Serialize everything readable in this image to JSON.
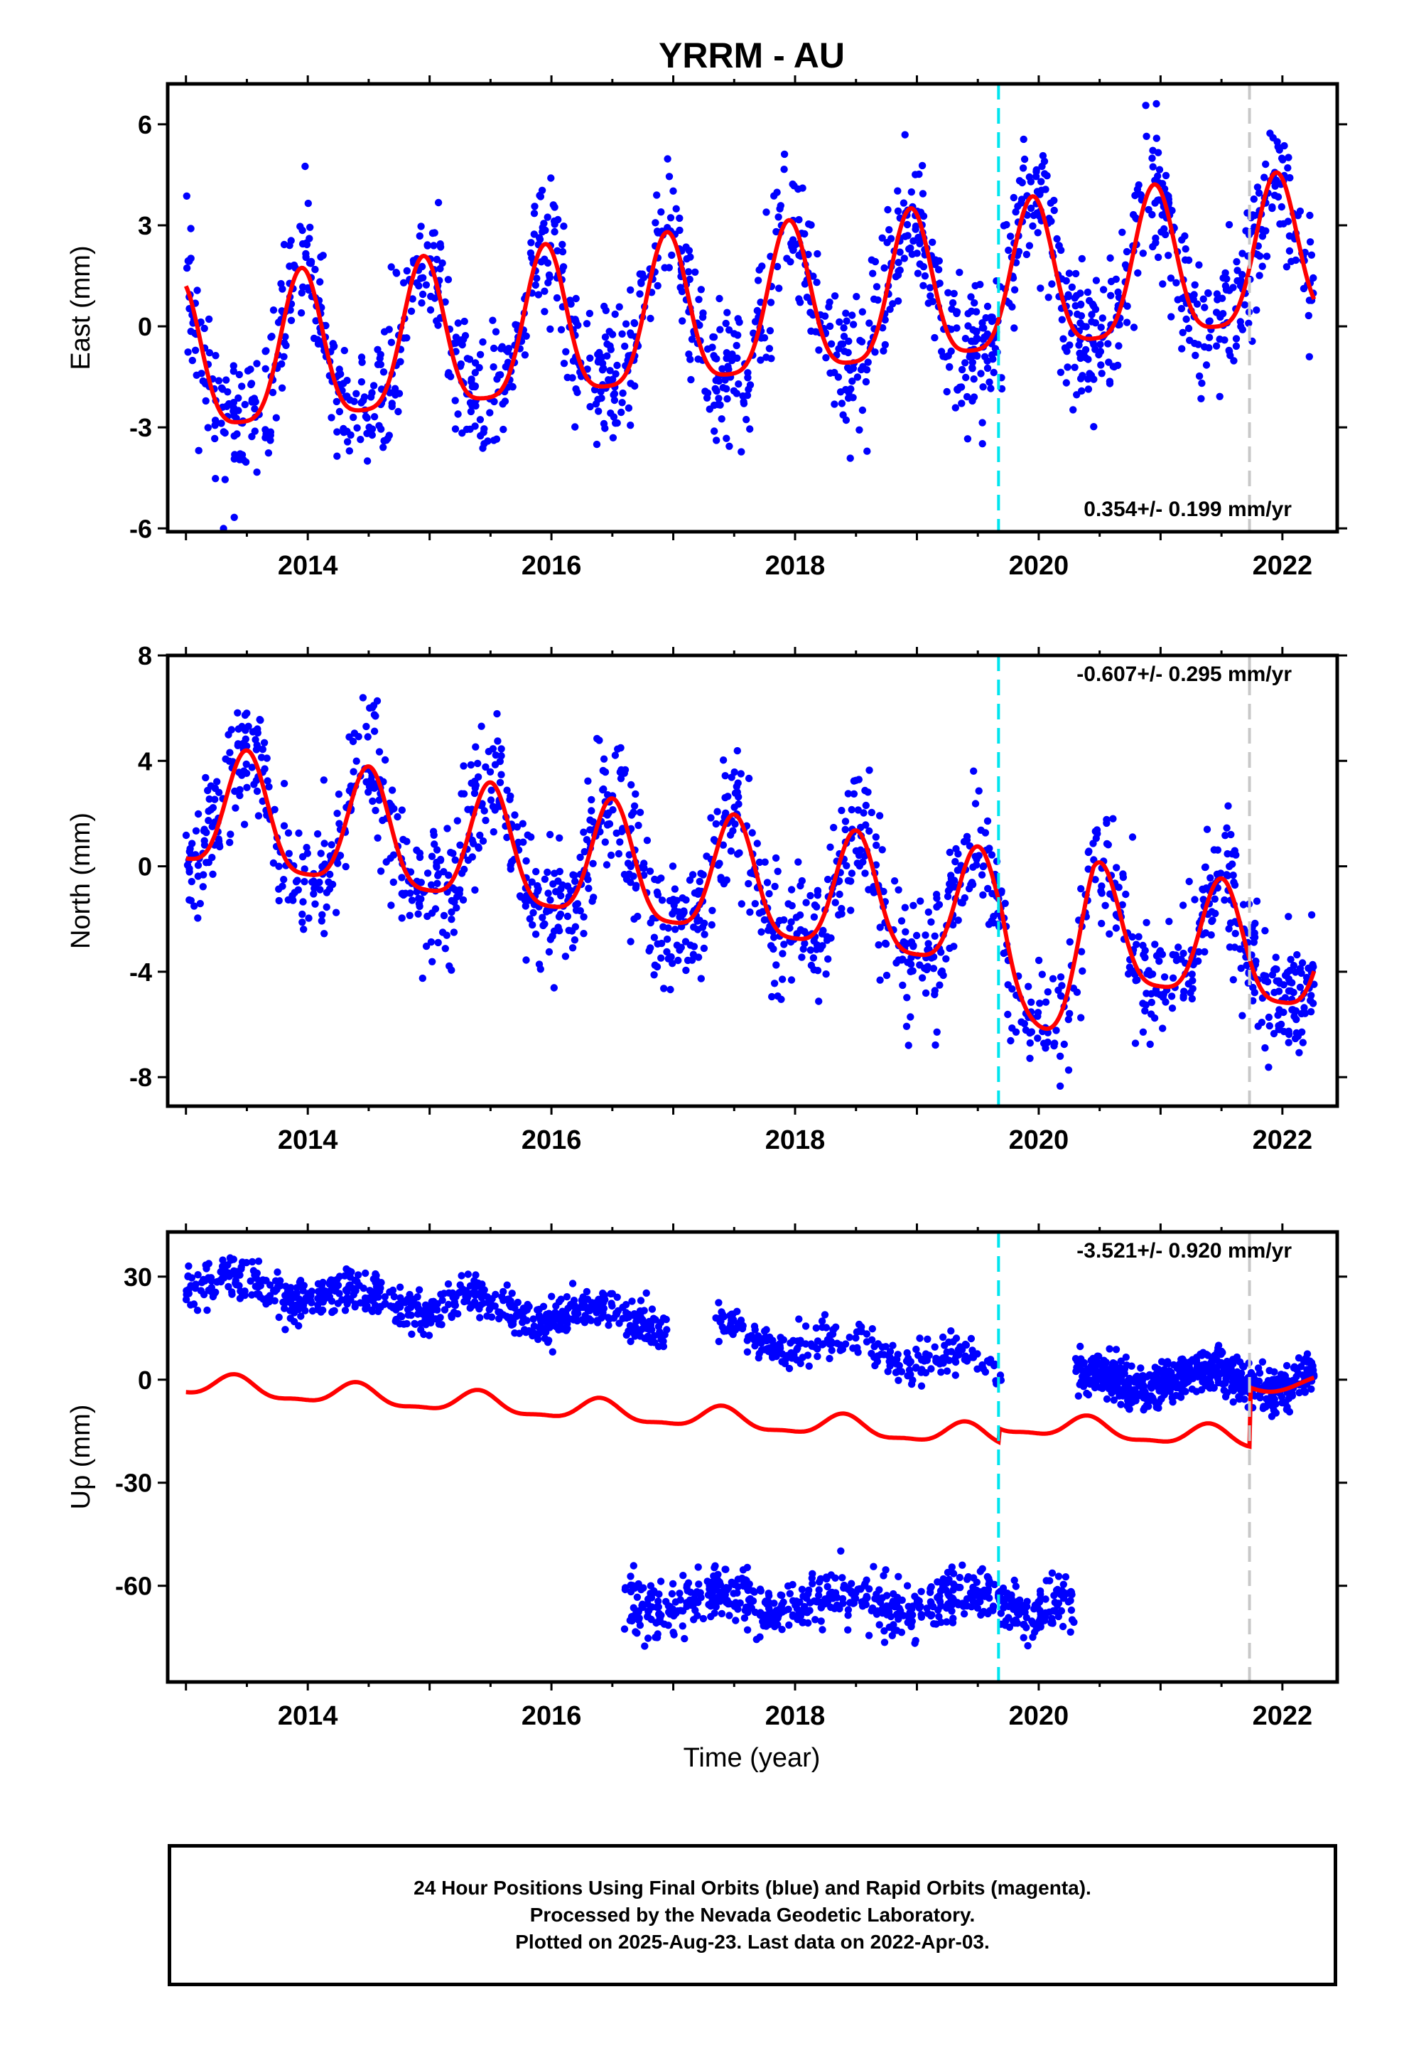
{
  "title": "YRRM - AU",
  "xlabel": "Time (year)",
  "footer": {
    "line1": "24 Hour Positions Using Final Orbits (blue) and Rapid Orbits (magenta).",
    "line2": "Processed by the Nevada Geodetic Laboratory.",
    "line3": "Plotted on 2025-Aug-23. Last data on 2022-Apr-03."
  },
  "colors": {
    "points": "#0000ff",
    "model": "#ff0000",
    "cyan_line": "#00e5ee",
    "gray_line": "#c8c8c8"
  },
  "chart_data": [
    {
      "type": "scatter",
      "component": "East",
      "ylabel": "East (mm)",
      "xlim": [
        2012.85,
        2022.45
      ],
      "ylim": [
        -6.1,
        7.2
      ],
      "yticks": [
        -6,
        -3,
        0,
        3,
        6
      ],
      "xticks": [
        2014,
        2016,
        2018,
        2020,
        2022
      ],
      "rate_label": "0.354+/- 0.199 mm/yr",
      "vlines": [
        {
          "x": 2019.67,
          "color": "cyan",
          "style": "dashed"
        },
        {
          "x": 2021.73,
          "color": "gray",
          "style": "dashed"
        }
      ],
      "series": [
        {
          "name": "Final Orbits",
          "color": "blue",
          "x_range": [
            2013.0,
            2022.26
          ],
          "trend_mm_per_yr": 0.354,
          "offset": -1.3,
          "annual_amplitude": 2.2,
          "annual_phase_peak": 0.95,
          "scatter_sd": 1.0
        },
        {
          "name": "Model",
          "color": "red",
          "style": "line"
        }
      ]
    },
    {
      "type": "scatter",
      "component": "North",
      "ylabel": "North (mm)",
      "xlim": [
        2012.85,
        2022.45
      ],
      "ylim": [
        -9.1,
        8.0
      ],
      "yticks": [
        -8,
        -4,
        0,
        4,
        8
      ],
      "xticks": [
        2014,
        2016,
        2018,
        2020,
        2022
      ],
      "rate_label": "-0.607+/- 0.295 mm/yr",
      "vlines": [
        {
          "x": 2019.67,
          "color": "cyan",
          "style": "dashed"
        },
        {
          "x": 2021.73,
          "color": "gray",
          "style": "dashed"
        }
      ],
      "series": [
        {
          "name": "Final Orbits",
          "color": "blue",
          "x_range": [
            2013.0,
            2022.26
          ],
          "trend_mm_per_yr": -0.607,
          "offset": 2.0,
          "annual_amplitude": 2.2,
          "annual_phase_peak": 0.5,
          "scatter_sd": 1.2
        },
        {
          "name": "Model",
          "color": "red",
          "style": "line"
        }
      ]
    },
    {
      "type": "scatter",
      "component": "Up",
      "ylabel": "Up (mm)",
      "xlim": [
        2012.85,
        2022.45
      ],
      "ylim": [
        -88,
        43
      ],
      "yticks": [
        -60,
        -30,
        0,
        30
      ],
      "xticks": [
        2014,
        2016,
        2018,
        2020,
        2022
      ],
      "rate_label": "-3.521+/- 0.920 mm/yr",
      "vlines": [
        {
          "x": 2019.67,
          "color": "cyan",
          "style": "dashed"
        },
        {
          "x": 2021.73,
          "color": "gray",
          "style": "dashed"
        }
      ],
      "segments": [
        {
          "x_range": [
            2013.0,
            2016.95
          ],
          "level_start": 28,
          "level_end": 17,
          "sd": 3.0
        },
        {
          "x_range": [
            2017.35,
            2019.7
          ],
          "level_start": 15,
          "level_end": 3,
          "sd": 3.0,
          "sparse": true
        },
        {
          "x_range": [
            2016.6,
            2020.3
          ],
          "level_start": -64,
          "level_end": -66,
          "sd": 3.8
        },
        {
          "x_range": [
            2020.3,
            2022.26
          ],
          "level_start": 0,
          "level_end": 0,
          "sd": 3.2
        }
      ],
      "series": [
        {
          "name": "Final Orbits",
          "color": "blue"
        },
        {
          "name": "Model",
          "color": "red",
          "style": "line"
        }
      ]
    }
  ]
}
